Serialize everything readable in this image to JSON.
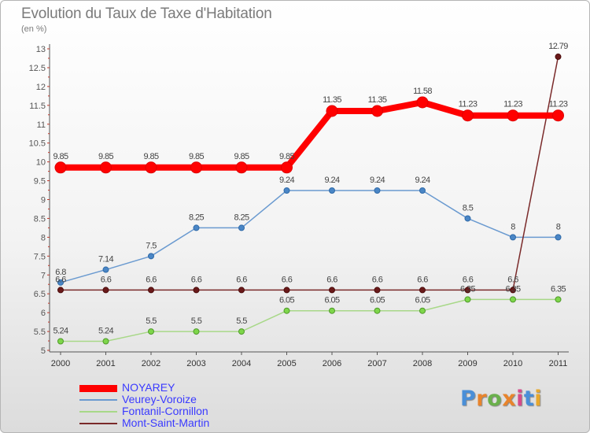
{
  "title": "Evolution du Taux de Taxe d'Habitation",
  "subtitle": "(en %)",
  "logo": {
    "text": "Proxiti",
    "colors": [
      "#4a8fd8",
      "#e8842c",
      "#6ab04c",
      "#e8842c",
      "#d64a8a",
      "#4a8fd8",
      "#e8a82c"
    ]
  },
  "chart_data": {
    "type": "line",
    "title": "Evolution du Taux de Taxe d'Habitation",
    "ylabel": "(en %)",
    "xlabel": "",
    "x": [
      "2000",
      "2001",
      "2002",
      "2003",
      "2004",
      "2005",
      "2006",
      "2007",
      "2008",
      "2009",
      "2010",
      "2011"
    ],
    "ylim": [
      5,
      13
    ],
    "yticks": [
      "5",
      "5.5",
      "6",
      "6.5",
      "7",
      "7.5",
      "8",
      "8.5",
      "9",
      "9.5",
      "10",
      "10.5",
      "11",
      "11.5",
      "12",
      "12.5",
      "13"
    ],
    "grid": false,
    "legend_position": "bottom-left",
    "series": [
      {
        "name": "NOYAREY",
        "color": "#ff0000",
        "values": [
          9.85,
          9.85,
          9.85,
          9.85,
          9.85,
          9.85,
          11.35,
          11.35,
          11.58,
          11.23,
          11.23,
          11.23
        ],
        "labels": [
          "9.85",
          "9.85",
          "9.85",
          "9.85",
          "9.85",
          "9.85",
          "11.35",
          "11.35",
          "11.58",
          "11.23",
          "11.23",
          "11.23"
        ]
      },
      {
        "name": "Veurey-Voroize",
        "color": "#6a9ad0",
        "values": [
          6.8,
          7.14,
          7.5,
          8.25,
          8.25,
          9.24,
          9.24,
          9.24,
          9.24,
          8.5,
          8,
          8
        ],
        "labels": [
          "6.8",
          "7.14",
          "7.5",
          "8.25",
          "8.25",
          "9.24",
          "9.24",
          "9.24",
          "9.24",
          "8.5",
          "8",
          "8"
        ]
      },
      {
        "name": "Fontanil-Cornillon",
        "color": "#a8d888",
        "values": [
          5.24,
          5.24,
          5.5,
          5.5,
          5.5,
          6.05,
          6.05,
          6.05,
          6.05,
          6.35,
          6.35,
          6.35
        ],
        "labels": [
          "5.24",
          "5.24",
          "5.5",
          "5.5",
          "5.5",
          "6.05",
          "6.05",
          "6.05",
          "6.05",
          "6.35",
          "6.35",
          "6.35"
        ]
      },
      {
        "name": "Mont-Saint-Martin",
        "color": "#7a2a2a",
        "values": [
          6.6,
          6.6,
          6.6,
          6.6,
          6.6,
          6.6,
          6.6,
          6.6,
          6.6,
          6.6,
          6.6,
          12.79
        ],
        "labels": [
          "6.6",
          "6.6",
          "6.6",
          "6.6",
          "6.6",
          "6.6",
          "6.6",
          "6.6",
          "6.6",
          "6.6",
          "6.6",
          "12.79"
        ]
      }
    ]
  }
}
